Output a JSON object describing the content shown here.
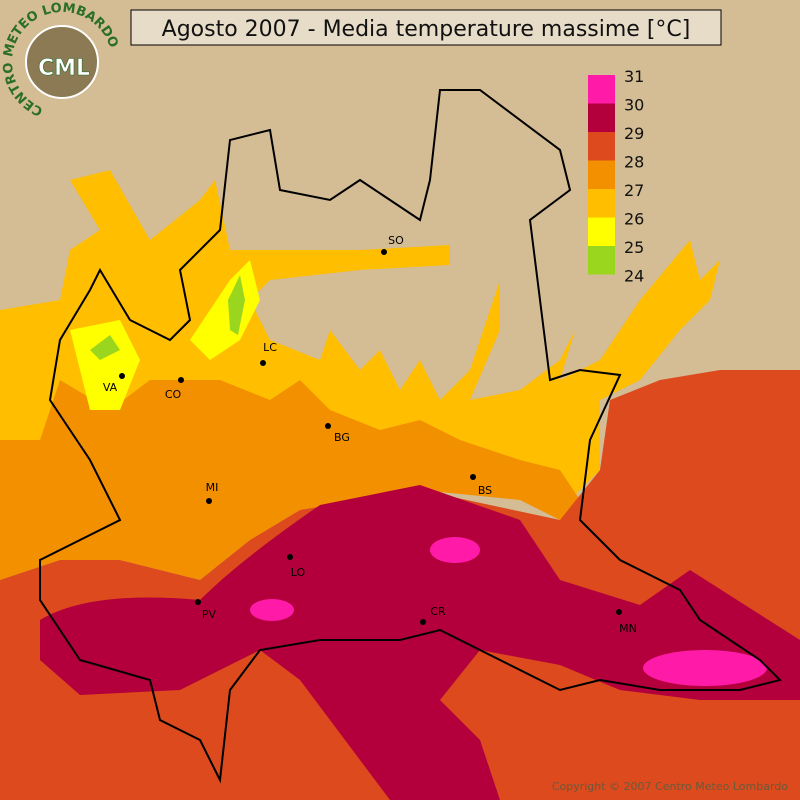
{
  "header": {
    "title": "Agosto 2007 - Media temperature massime [°C]"
  },
  "logo": {
    "ring_text": "CENTRO METEO LOMBARDO",
    "abbr": "CML"
  },
  "legend": {
    "labels": [
      31,
      30,
      29,
      28,
      27,
      26,
      25,
      24
    ],
    "colors": [
      "#ff1aa8",
      "#b3003c",
      "#dc4a1e",
      "#f39000",
      "#ffbe00",
      "#ffff00",
      "#9bd61e"
    ]
  },
  "cities": [
    {
      "label": "SO"
    },
    {
      "label": "LC"
    },
    {
      "label": "VA"
    },
    {
      "label": "CO"
    },
    {
      "label": "BG"
    },
    {
      "label": "MI"
    },
    {
      "label": "BS"
    },
    {
      "label": "LO"
    },
    {
      "label": "PV"
    },
    {
      "label": "CR"
    },
    {
      "label": "MN"
    }
  ],
  "footer": {
    "copyright": "Copyright © 2007 Centro Meteo Lombardo"
  }
}
